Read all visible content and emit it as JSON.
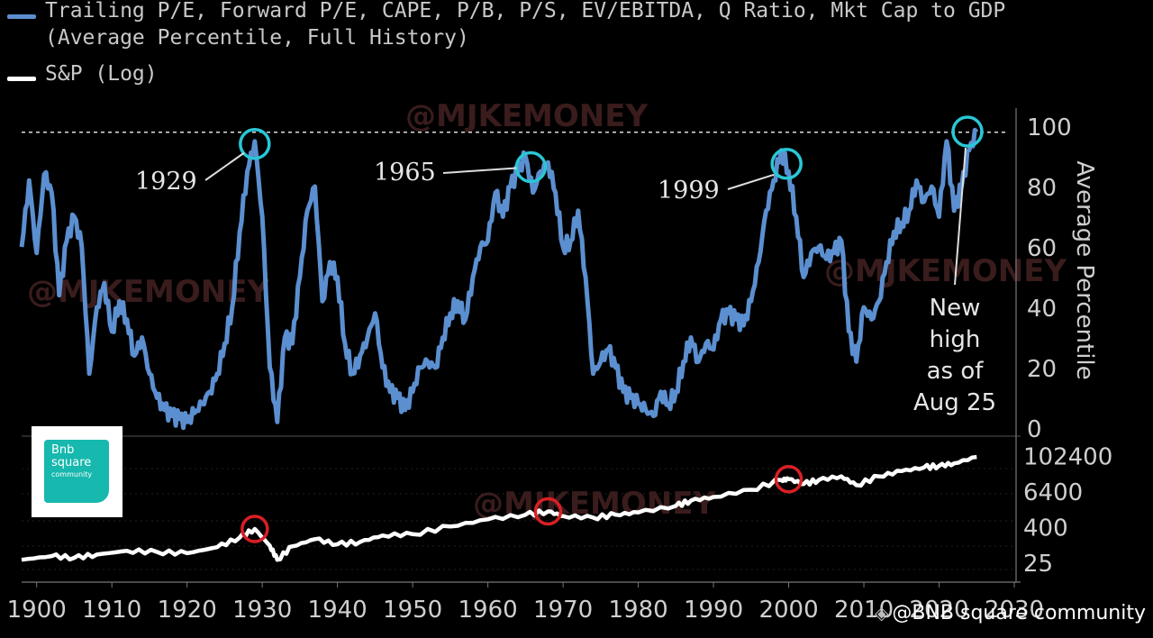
{
  "legend": {
    "series1_line1": "Trailing P/E, Forward P/E, CAPE, P/B, P/S, EV/EBITDA, Q Ratio, Mkt Cap to GDP",
    "series1_line2": "(Average Percentile, Full History)",
    "series2": "S&P (Log)",
    "series1_color": "#5b8fd0",
    "series2_color": "#ffffff"
  },
  "watermark": "@MJKEMONEY",
  "logo": {
    "line1": "Bnb",
    "line2": "square",
    "line3": "community"
  },
  "credit": {
    "icon": "binance-diamond-icon",
    "text": "@BNB square community"
  },
  "chart_data": [
    {
      "type": "line",
      "title": "",
      "ylabel": "Average Percentile",
      "xlim": [
        1898,
        2030
      ],
      "ylim": [
        0,
        100
      ],
      "yticks": [
        0,
        20,
        40,
        60,
        80,
        100
      ],
      "grid": false,
      "reference_line": {
        "y": 98,
        "style": "dashed"
      },
      "series": [
        {
          "name": "Trailing P/E, Forward P/E, CAPE, P/B, P/S, EV/EBITDA, Q Ratio, Mkt Cap to GDP (Average Percentile, Full History)",
          "color": "#5b8fd0",
          "points": [
            [
              1898,
              60
            ],
            [
              1899,
              82
            ],
            [
              1900,
              58
            ],
            [
              1901,
              84
            ],
            [
              1902,
              78
            ],
            [
              1903,
              44
            ],
            [
              1904,
              62
            ],
            [
              1905,
              70
            ],
            [
              1906,
              60
            ],
            [
              1907,
              18
            ],
            [
              1908,
              40
            ],
            [
              1909,
              48
            ],
            [
              1910,
              32
            ],
            [
              1911,
              42
            ],
            [
              1912,
              36
            ],
            [
              1913,
              24
            ],
            [
              1914,
              30
            ],
            [
              1915,
              18
            ],
            [
              1916,
              10
            ],
            [
              1917,
              6
            ],
            [
              1918,
              4
            ],
            [
              1919,
              3
            ],
            [
              1920,
              2
            ],
            [
              1921,
              5
            ],
            [
              1922,
              8
            ],
            [
              1923,
              12
            ],
            [
              1924,
              18
            ],
            [
              1925,
              28
            ],
            [
              1926,
              40
            ],
            [
              1927,
              65
            ],
            [
              1928,
              85
            ],
            [
              1929,
              95
            ],
            [
              1930,
              70
            ],
            [
              1931,
              20
            ],
            [
              1932,
              2
            ],
            [
              1933,
              30
            ],
            [
              1934,
              28
            ],
            [
              1935,
              50
            ],
            [
              1936,
              72
            ],
            [
              1937,
              80
            ],
            [
              1938,
              42
            ],
            [
              1939,
              55
            ],
            [
              1940,
              50
            ],
            [
              1941,
              28
            ],
            [
              1942,
              18
            ],
            [
              1943,
              24
            ],
            [
              1944,
              30
            ],
            [
              1945,
              38
            ],
            [
              1946,
              20
            ],
            [
              1947,
              12
            ],
            [
              1948,
              10
            ],
            [
              1949,
              6
            ],
            [
              1950,
              12
            ],
            [
              1951,
              20
            ],
            [
              1952,
              22
            ],
            [
              1953,
              20
            ],
            [
              1954,
              30
            ],
            [
              1955,
              38
            ],
            [
              1956,
              42
            ],
            [
              1957,
              36
            ],
            [
              1958,
              50
            ],
            [
              1959,
              60
            ],
            [
              1960,
              62
            ],
            [
              1961,
              78
            ],
            [
              1962,
              70
            ],
            [
              1963,
              80
            ],
            [
              1964,
              85
            ],
            [
              1965,
              90
            ],
            [
              1966,
              78
            ],
            [
              1967,
              85
            ],
            [
              1968,
              88
            ],
            [
              1969,
              78
            ],
            [
              1970,
              60
            ],
            [
              1971,
              62
            ],
            [
              1972,
              72
            ],
            [
              1973,
              50
            ],
            [
              1974,
              18
            ],
            [
              1975,
              22
            ],
            [
              1976,
              26
            ],
            [
              1977,
              20
            ],
            [
              1978,
              12
            ],
            [
              1979,
              10
            ],
            [
              1980,
              8
            ],
            [
              1981,
              6
            ],
            [
              1982,
              4
            ],
            [
              1983,
              12
            ],
            [
              1984,
              8
            ],
            [
              1985,
              12
            ],
            [
              1986,
              22
            ],
            [
              1987,
              30
            ],
            [
              1988,
              22
            ],
            [
              1989,
              28
            ],
            [
              1990,
              26
            ],
            [
              1991,
              36
            ],
            [
              1992,
              38
            ],
            [
              1993,
              36
            ],
            [
              1994,
              34
            ],
            [
              1995,
              42
            ],
            [
              1996,
              55
            ],
            [
              1997,
              72
            ],
            [
              1998,
              82
            ],
            [
              1999,
              92
            ],
            [
              2000,
              85
            ],
            [
              2001,
              70
            ],
            [
              2002,
              50
            ],
            [
              2003,
              58
            ],
            [
              2004,
              60
            ],
            [
              2005,
              56
            ],
            [
              2006,
              58
            ],
            [
              2007,
              62
            ],
            [
              2008,
              32
            ],
            [
              2009,
              22
            ],
            [
              2010,
              40
            ],
            [
              2011,
              36
            ],
            [
              2012,
              42
            ],
            [
              2013,
              55
            ],
            [
              2014,
              65
            ],
            [
              2015,
              68
            ],
            [
              2016,
              72
            ],
            [
              2017,
              82
            ],
            [
              2018,
              75
            ],
            [
              2019,
              80
            ],
            [
              2020,
              70
            ],
            [
              2021,
              95
            ],
            [
              2022,
              72
            ],
            [
              2023,
              80
            ],
            [
              2024,
              92
            ],
            [
              2025,
              98
            ]
          ]
        }
      ],
      "annotations": [
        {
          "label": "1929",
          "x": 1929,
          "y": 95
        },
        {
          "label": "1965",
          "x": 1965,
          "y": 90
        },
        {
          "label": "1999",
          "x": 1999,
          "y": 92
        },
        {
          "label": "New high as of Aug 25",
          "lines": [
            "New",
            "high",
            "as of",
            "Aug 25"
          ],
          "x": 2025,
          "y": 98
        }
      ]
    },
    {
      "type": "line",
      "title": "",
      "yscale": "log",
      "xlim": [
        1898,
        2030
      ],
      "ylim": [
        8,
        300000
      ],
      "yticks": [
        25,
        400,
        6400,
        102400
      ],
      "xticks": [
        1900,
        1910,
        1920,
        1930,
        1940,
        1950,
        1960,
        1970,
        1980,
        1990,
        2000,
        2010,
        2020,
        2030
      ],
      "xticklabels": [
        "1900",
        "1910",
        "1920",
        "1930",
        "1940",
        "1950",
        "1960",
        "1970",
        "1980",
        "1990",
        "2000",
        "2010",
        "2020",
        "2030"
      ],
      "series": [
        {
          "name": "S&P (Log)",
          "color": "#ffffff",
          "points": [
            [
              1898,
              30
            ],
            [
              1902,
              40
            ],
            [
              1905,
              35
            ],
            [
              1908,
              45
            ],
            [
              1912,
              60
            ],
            [
              1916,
              55
            ],
            [
              1920,
              50
            ],
            [
              1924,
              80
            ],
            [
              1927,
              170
            ],
            [
              1929,
              330
            ],
            [
              1931,
              90
            ],
            [
              1932,
              30
            ],
            [
              1934,
              85
            ],
            [
              1937,
              150
            ],
            [
              1940,
              100
            ],
            [
              1943,
              120
            ],
            [
              1946,
              200
            ],
            [
              1950,
              220
            ],
            [
              1955,
              400
            ],
            [
              1960,
              700
            ],
            [
              1965,
              1000
            ],
            [
              1968,
              1300
            ],
            [
              1970,
              900
            ],
            [
              1974,
              800
            ],
            [
              1977,
              1000
            ],
            [
              1980,
              1200
            ],
            [
              1985,
              2000
            ],
            [
              1987,
              3000
            ],
            [
              1990,
              4000
            ],
            [
              1995,
              7000
            ],
            [
              1999,
              15000
            ],
            [
              2000,
              16000
            ],
            [
              2002,
              11000
            ],
            [
              2004,
              15000
            ],
            [
              2007,
              20000
            ],
            [
              2009,
              10000
            ],
            [
              2012,
              20000
            ],
            [
              2015,
              30000
            ],
            [
              2018,
              40000
            ],
            [
              2020,
              45000
            ],
            [
              2022,
              55000
            ],
            [
              2025,
              90000
            ]
          ]
        }
      ],
      "annotations": [
        {
          "x": 1929,
          "y": 330,
          "marker": "red-circle"
        },
        {
          "x": 1968,
          "y": 1300,
          "marker": "red-circle"
        },
        {
          "x": 2000,
          "y": 16000,
          "marker": "red-circle"
        }
      ]
    }
  ]
}
